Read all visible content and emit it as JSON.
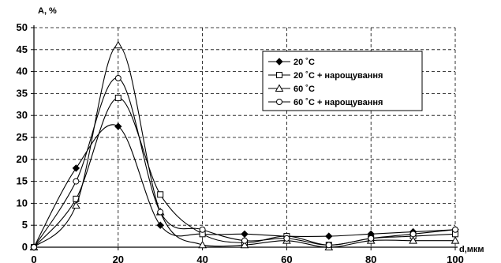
{
  "chart_data": {
    "type": "line",
    "ylabel": "A, %",
    "xlabel": "d,мкм",
    "xlim": [
      0,
      100
    ],
    "ylim": [
      0,
      50
    ],
    "xticks": [
      0,
      20,
      40,
      60,
      80,
      100
    ],
    "yticks": [
      0,
      5,
      10,
      15,
      20,
      25,
      30,
      35,
      40,
      45,
      50
    ],
    "grid": "dashed",
    "legend_position": "top-right",
    "x": [
      0,
      10,
      20,
      30,
      40,
      50,
      60,
      70,
      80,
      90,
      100
    ],
    "series": [
      {
        "name": "20 ˚С",
        "marker": "filled-diamond",
        "values": [
          0,
          18,
          27.5,
          5,
          3,
          3,
          2.5,
          2.5,
          3,
          3.5,
          4
        ]
      },
      {
        "name": "20 ˚С + нарощування",
        "marker": "open-square",
        "values": [
          0,
          11,
          34,
          12,
          3,
          1,
          2.5,
          0.5,
          2,
          2.5,
          3
        ]
      },
      {
        "name": "60 ˚С",
        "marker": "open-triangle",
        "values": [
          0,
          9.5,
          46,
          8,
          0.5,
          0.5,
          1.5,
          0,
          1.5,
          1.5,
          1.5
        ]
      },
      {
        "name": "60 ˚С + нарощування",
        "marker": "open-circle",
        "values": [
          0,
          15,
          38.5,
          8,
          4,
          1.5,
          2,
          0.5,
          2,
          3,
          4
        ]
      }
    ]
  }
}
